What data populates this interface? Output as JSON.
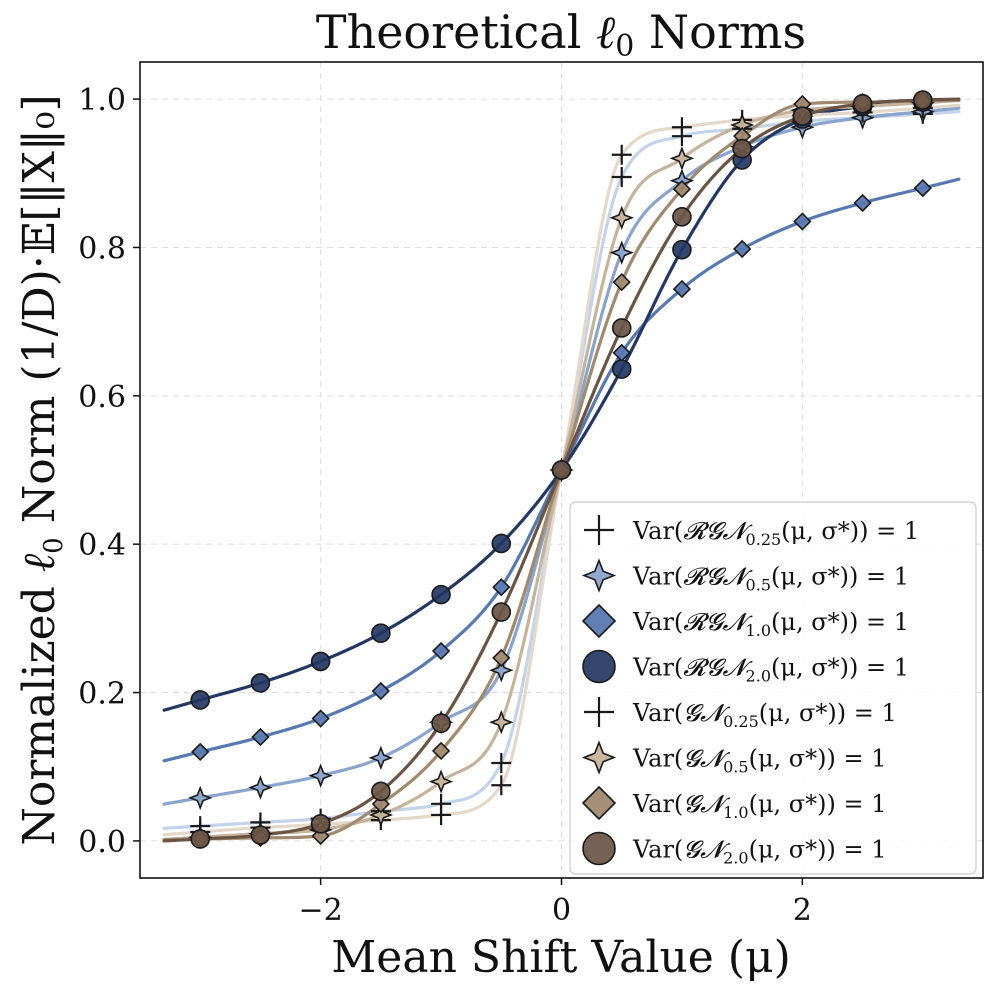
{
  "chart_data": {
    "type": "line",
    "title": "Theoretical ℓ₀ Norms",
    "title_main": "Theoretical ",
    "title_symbol": "ℓ",
    "title_sub": "0",
    "title_tail": " Norms",
    "xlabel": "Mean Shift Value (μ)",
    "ylabel_pre": "Normalized ",
    "ylabel_symbol": "ℓ",
    "ylabel_sub": "0",
    "ylabel_post": " Norm (1/D)·𝔼[‖X‖₀]",
    "xlim": [
      -3.5,
      3.5
    ],
    "ylim": [
      -0.05,
      1.05
    ],
    "xticks": [
      -2,
      0,
      2
    ],
    "xtick_labels": [
      "−2",
      "0",
      "2"
    ],
    "yticks": [
      0.0,
      0.2,
      0.4,
      0.6,
      0.8,
      1.0
    ],
    "ytick_labels": [
      "0.0",
      "0.2",
      "0.4",
      "0.6",
      "0.8",
      "1.0"
    ],
    "grid": true,
    "legend_position": "lower-right",
    "marker_x": [
      -3,
      -2.5,
      -2,
      -1.5,
      -1,
      -0.5,
      0,
      0.5,
      1,
      1.5,
      2,
      2.5,
      3
    ],
    "series": [
      {
        "name": "Var(RGN_0.25(μ,σ*))=1",
        "label_pre": "Var(",
        "label_dist": "𝓡𝓖𝓝",
        "label_sub": "0.25",
        "label_post": "(μ, σ*)) = 1",
        "family": "RGN",
        "beta": 0.25,
        "color": "#c3d3ea",
        "marker": "plus",
        "values": [
          0.02,
          0.025,
          0.03,
          0.04,
          0.05,
          0.105,
          0.5,
          0.895,
          0.95,
          0.96,
          0.97,
          0.975,
          0.98
        ]
      },
      {
        "name": "Var(RGN_0.5(μ,σ*))=1",
        "label_pre": "Var(",
        "label_dist": "𝓡𝓖𝓝",
        "label_sub": "0.5",
        "label_post": "(μ, σ*)) = 1",
        "family": "RGN",
        "beta": 0.5,
        "color": "#8aa4cc",
        "marker": "star",
        "values": [
          0.058,
          0.072,
          0.088,
          0.112,
          0.16,
          0.23,
          0.5,
          0.793,
          0.89,
          0.936,
          0.962,
          0.975,
          0.983
        ]
      },
      {
        "name": "Var(RGN_1.0(μ,σ*))=1",
        "label_pre": "Var(",
        "label_dist": "𝓡𝓖𝓝",
        "label_sub": "1.0",
        "label_post": "(μ, σ*)) = 1",
        "family": "RGN",
        "beta": 1.0,
        "color": "#5878b0",
        "marker": "diamond",
        "values": [
          0.12,
          0.14,
          0.165,
          0.202,
          0.256,
          0.342,
          0.5,
          0.658,
          0.744,
          0.798,
          0.835,
          0.86,
          0.88
        ]
      },
      {
        "name": "Var(RGN_2.0(μ,σ*))=1",
        "label_pre": "Var(",
        "label_dist": "𝓡𝓖𝓝",
        "label_sub": "2.0",
        "label_post": "(μ, σ*)) = 1",
        "family": "RGN",
        "beta": 2.0,
        "color": "#243763",
        "marker": "circle",
        "values": [
          0.19,
          0.213,
          0.242,
          0.28,
          0.332,
          0.401,
          0.5,
          0.636,
          0.797,
          0.918,
          0.973,
          0.99,
          0.996
        ]
      },
      {
        "name": "Var(GN_0.25(μ,σ*))=1",
        "label_pre": "Var(",
        "label_dist": "𝓖𝓝",
        "label_sub": "0.25",
        "label_post": "(μ, σ*)) = 1",
        "family": "GN",
        "beta": 0.25,
        "color": "#e4d8cb",
        "marker": "plus",
        "values": [
          0.012,
          0.018,
          0.022,
          0.028,
          0.035,
          0.075,
          0.5,
          0.925,
          0.962,
          0.972,
          0.978,
          0.982,
          0.988
        ]
      },
      {
        "name": "Var(GN_0.5(μ,σ*))=1",
        "label_pre": "Var(",
        "label_dist": "𝓖𝓝",
        "label_sub": "0.5",
        "label_post": "(μ, σ*)) = 1",
        "family": "GN",
        "beta": 0.5,
        "color": "#c6b39c",
        "marker": "star",
        "values": [
          0.005,
          0.01,
          0.015,
          0.035,
          0.08,
          0.16,
          0.5,
          0.84,
          0.92,
          0.965,
          0.985,
          0.99,
          0.995
        ]
      },
      {
        "name": "Var(GN_1.0(μ,σ*))=1",
        "label_pre": "Var(",
        "label_dist": "𝓖𝓝",
        "label_sub": "1.0",
        "label_post": "(μ, σ*)) = 1",
        "family": "GN",
        "beta": 1.0,
        "color": "#a08a70",
        "marker": "diamond",
        "values": [
          0.0025,
          0.0041,
          0.0067,
          0.0498,
          0.1213,
          0.2467,
          0.5,
          0.7533,
          0.8787,
          0.9502,
          0.9933,
          0.9959,
          0.9975
        ]
      },
      {
        "name": "Var(GN_2.0(μ,σ*))=1",
        "label_pre": "Var(",
        "label_dist": "𝓖𝓝",
        "label_sub": "2.0",
        "label_post": "(μ, σ*)) = 1",
        "family": "GN",
        "beta": 2.0,
        "color": "#6a5545",
        "marker": "circle",
        "values": [
          0.0026,
          0.0078,
          0.023,
          0.0668,
          0.1587,
          0.3085,
          0.5,
          0.6915,
          0.8413,
          0.9332,
          0.977,
          0.9938,
          0.9987
        ]
      }
    ]
  }
}
